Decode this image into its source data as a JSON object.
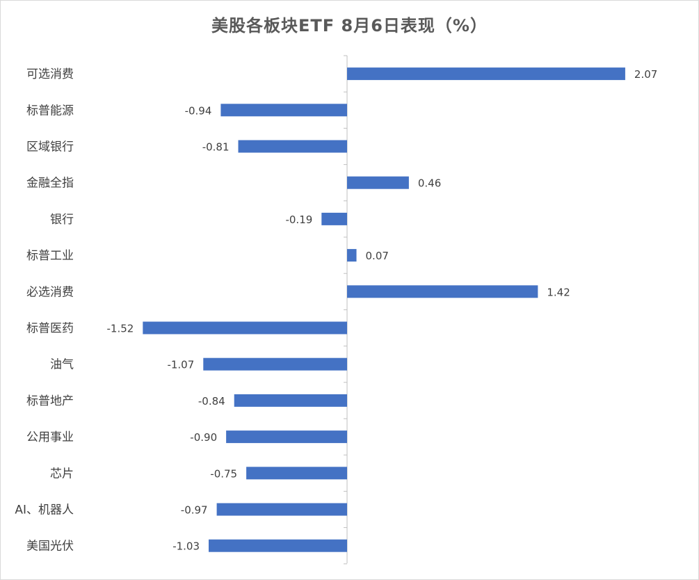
{
  "chart_data": {
    "type": "bar",
    "orientation": "horizontal",
    "title": "美股各板块ETF 8月6日表现（%）",
    "categories": [
      "可选消费",
      "标普能源",
      "区域银行",
      "金融全指",
      "银行",
      "标普工业",
      "必选消费",
      "标普医药",
      "油气",
      "标普地产",
      "公用事业",
      "芯片",
      "AI、机器人",
      "美国光伏"
    ],
    "values": [
      2.07,
      -0.94,
      -0.81,
      0.46,
      -0.19,
      0.07,
      1.42,
      -1.52,
      -1.07,
      -0.84,
      -0.9,
      -0.75,
      -0.97,
      -1.03
    ],
    "value_labels": [
      "2.07",
      "-0.94",
      "-0.81",
      "0.46",
      "-0.19",
      "0.07",
      "1.42",
      "-1.52",
      "-1.07",
      "-0.84",
      "-0.90",
      "-0.75",
      "-0.97",
      "-1.03"
    ],
    "xlim": [
      -1.52,
      2.07
    ],
    "grid": false,
    "bar_color": "#4472c4"
  }
}
